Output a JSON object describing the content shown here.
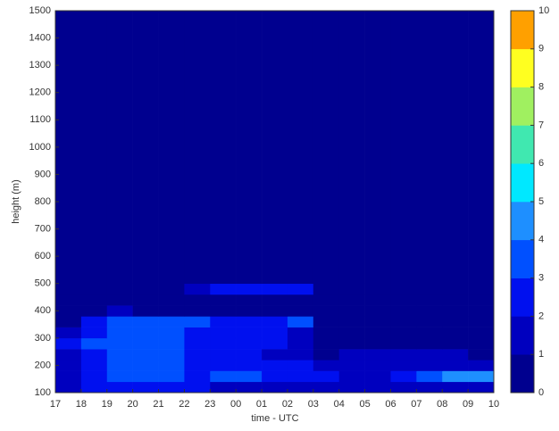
{
  "chart_data": {
    "type": "heatmap",
    "xlabel": "time - UTC",
    "ylabel": "height (m)",
    "xlim": [
      0,
      17
    ],
    "xticks": [
      {
        "value": 0,
        "label": "17"
      },
      {
        "value": 1,
        "label": "18"
      },
      {
        "value": 2,
        "label": "19"
      },
      {
        "value": 3,
        "label": "20"
      },
      {
        "value": 4,
        "label": "21"
      },
      {
        "value": 5,
        "label": "22"
      },
      {
        "value": 6,
        "label": "23"
      },
      {
        "value": 7,
        "label": "00"
      },
      {
        "value": 8,
        "label": "01"
      },
      {
        "value": 9,
        "label": "02"
      },
      {
        "value": 10,
        "label": "03"
      },
      {
        "value": 11,
        "label": "04"
      },
      {
        "value": 12,
        "label": "05"
      },
      {
        "value": 13,
        "label": "06"
      },
      {
        "value": 14,
        "label": "07"
      },
      {
        "value": 15,
        "label": "08"
      },
      {
        "value": 16,
        "label": "09"
      },
      {
        "value": 17,
        "label": "10"
      }
    ],
    "ylim": [
      100,
      1500
    ],
    "yticks": [
      100,
      200,
      300,
      400,
      500,
      600,
      700,
      800,
      900,
      1000,
      1100,
      1200,
      1300,
      1400,
      1500
    ],
    "x_bins": [
      0,
      1,
      2,
      3,
      4,
      5,
      6,
      7,
      8,
      9,
      10,
      11,
      12,
      13,
      14,
      15,
      16,
      17
    ],
    "y_bins": [
      100,
      140,
      180,
      220,
      260,
      300,
      340,
      380,
      420,
      460,
      500,
      1500
    ],
    "z": [
      [
        1.5,
        2.2,
        2.5,
        2.5,
        2.2,
        2.0,
        1.5,
        1.5,
        1.5,
        1.5,
        1.5,
        1.5,
        1.5,
        1.5,
        1.5,
        1.5,
        1.2
      ],
      [
        1.5,
        2.5,
        3.2,
        3.2,
        3.0,
        2.8,
        3.2,
        3.0,
        2.8,
        2.5,
        2.0,
        1.5,
        1.5,
        2.5,
        3.0,
        4.5,
        4.5
      ],
      [
        1.5,
        2.5,
        3.5,
        3.2,
        3.0,
        2.5,
        2.8,
        2.5,
        2.5,
        2.0,
        1.5,
        1.5,
        1.2,
        1.2,
        1.2,
        1.2,
        1.2
      ],
      [
        1.5,
        2.8,
        3.5,
        3.5,
        3.0,
        2.8,
        2.5,
        2.2,
        1.8,
        1.2,
        0.8,
        1.2,
        1.2,
        1.2,
        1.2,
        1.2,
        0.8
      ],
      [
        2.5,
        3.0,
        3.5,
        3.2,
        3.0,
        2.8,
        2.5,
        2.5,
        2.5,
        1.5,
        0.8,
        0.5,
        0.5,
        0.5,
        0.5,
        0.5,
        0.5
      ],
      [
        1.5,
        2.5,
        3.2,
        3.5,
        3.2,
        2.5,
        2.5,
        2.5,
        2.0,
        1.5,
        0.5,
        0.5,
        0.5,
        0.5,
        0.5,
        0.5,
        0.5
      ],
      [
        0.5,
        2.5,
        3.0,
        3.5,
        3.5,
        3.0,
        2.5,
        2.5,
        2.5,
        3.0,
        0.5,
        0.5,
        0.5,
        0.5,
        0.5,
        0.5,
        0.5
      ],
      [
        0.5,
        0.5,
        1.5,
        0.5,
        0.5,
        0.5,
        0.5,
        0.5,
        0.5,
        0.5,
        0.5,
        0.5,
        0.5,
        0.5,
        0.5,
        0.5,
        0.5
      ],
      [
        0.5,
        0.5,
        0.5,
        0.5,
        0.5,
        0.5,
        0.5,
        0.5,
        0.5,
        0.5,
        0.5,
        0.5,
        0.5,
        0.5,
        0.5,
        0.5,
        0.5
      ],
      [
        0.5,
        0.5,
        0.5,
        0.5,
        0.5,
        1.5,
        2.0,
        2.0,
        2.5,
        2.5,
        0.5,
        0.5,
        0.5,
        0.5,
        0.5,
        0.5,
        0.5
      ],
      [
        0.5,
        0.5,
        0.5,
        0.5,
        0.5,
        0.5,
        0.5,
        0.5,
        0.5,
        0.5,
        0.5,
        0.5,
        0.5,
        0.5,
        0.5,
        0.5,
        0.5
      ]
    ],
    "colorbar": {
      "lim": [
        0,
        10
      ],
      "ticks": [
        0,
        1,
        2,
        3,
        4,
        5,
        6,
        7,
        8,
        9,
        10
      ],
      "colors": [
        "#00008f",
        "#0000bf",
        "#0010ef",
        "#0050ff",
        "#1e8fff",
        "#00e8ff",
        "#40e8b0",
        "#a0f060",
        "#ffff20",
        "#ffa000"
      ]
    }
  }
}
